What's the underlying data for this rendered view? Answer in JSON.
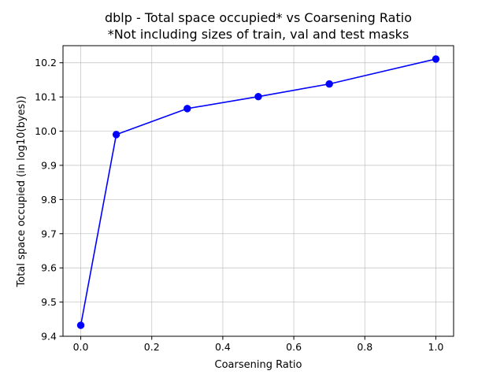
{
  "chart_data": {
    "type": "line",
    "title": "dblp - Total space occupied* vs Coarsening Ratio",
    "subtitle": "*Not including sizes of train, val and test masks",
    "xlabel": "Coarsening Ratio",
    "ylabel": "Total space occupied (in log10(byes))",
    "xlim": [
      -0.05,
      1.05
    ],
    "ylim": [
      9.4,
      10.25
    ],
    "xticks": [
      "0.0",
      "0.2",
      "0.4",
      "0.6",
      "0.8",
      "1.0"
    ],
    "yticks": [
      "9.4",
      "9.5",
      "9.6",
      "9.7",
      "9.8",
      "9.9",
      "10.0",
      "10.1",
      "10.2"
    ],
    "grid": true,
    "series": [
      {
        "x": [
          0.0,
          0.1,
          0.3,
          0.5,
          0.7,
          1.0
        ],
        "y": [
          9.432,
          9.99,
          10.066,
          10.101,
          10.138,
          10.211
        ],
        "color": "#0000ff",
        "marker": "circle"
      }
    ]
  }
}
